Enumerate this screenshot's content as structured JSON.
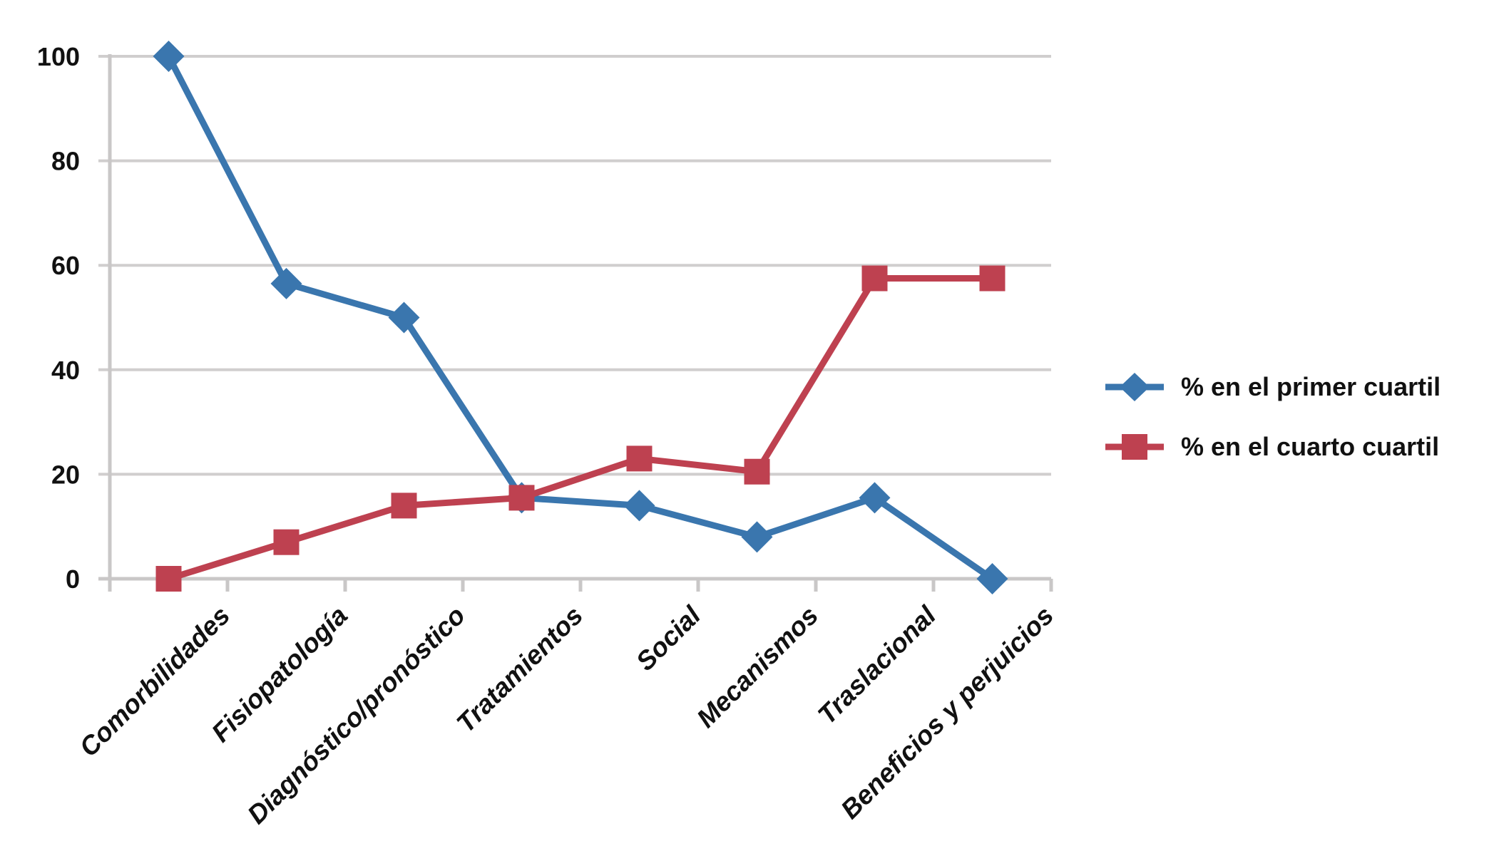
{
  "chart_data": {
    "type": "line",
    "title": "",
    "xlabel": "",
    "ylabel": "",
    "categories": [
      "Comorbilidades",
      "Fisiopatología",
      "Diagnóstico/pronóstico",
      "Tratamientos",
      "Social",
      "Mecanismos",
      "Traslacional",
      "Beneficios y perjuicios"
    ],
    "series": [
      {
        "name": "% en el primer cuartil",
        "marker": "diamond",
        "color": "#3A76AE",
        "values": [
          100,
          56.5,
          50,
          15.5,
          14,
          8,
          15.5,
          0
        ]
      },
      {
        "name": "% en el cuarto cuartil",
        "marker": "square",
        "color": "#BE4150",
        "values": [
          0,
          7,
          14,
          15.5,
          23,
          20.5,
          57.5,
          57.5
        ]
      }
    ],
    "ylim": [
      0,
      100
    ],
    "yticks": [
      0,
      20,
      40,
      60,
      80,
      100
    ],
    "grid": true,
    "grid_color": "#D0CECE",
    "axis_color": "#C9C7C7",
    "text_color": "#111111",
    "background": "#FFFFFF",
    "legend_position": "right",
    "x_labels_rotation_deg": 45,
    "x_labels_style": "bold italic"
  }
}
